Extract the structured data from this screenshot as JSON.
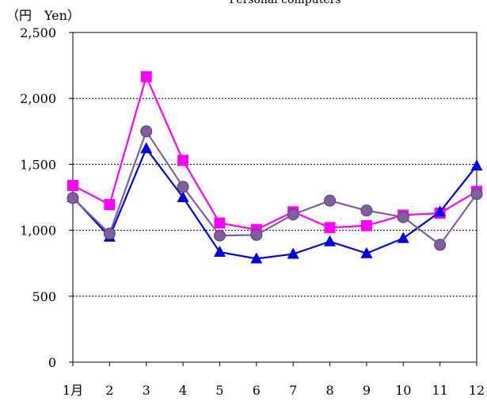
{
  "chart_data": {
    "type": "line",
    "title": "Personal computers",
    "ylabel": "（円　Yen）",
    "categories": [
      "1月",
      "2",
      "3",
      "4",
      "5",
      "6",
      "7",
      "8",
      "9",
      "10",
      "11",
      "12"
    ],
    "ylim": [
      0,
      2500
    ],
    "yticks": [
      0,
      500,
      1000,
      1500,
      2000,
      2500
    ],
    "ytick_labels": [
      "0",
      "500",
      "1,000",
      "1,500",
      "2,000",
      "2,500"
    ],
    "grid": true,
    "series": [
      {
        "marker": "square",
        "color": "#ff00ff",
        "values": [
          1340,
          1195,
          2165,
          1530,
          1055,
          1005,
          1140,
          1020,
          1035,
          1115,
          1130,
          1295
        ]
      },
      {
        "marker": "triangle",
        "color": "#0000e6",
        "values": [
          1250,
          950,
          1620,
          1250,
          835,
          785,
          820,
          915,
          825,
          940,
          1140,
          1490
        ]
      },
      {
        "marker": "circle",
        "color": "#7f5f9f",
        "values": [
          1245,
          975,
          1750,
          1330,
          960,
          965,
          1120,
          1225,
          1150,
          1100,
          890,
          1275
        ]
      }
    ]
  }
}
